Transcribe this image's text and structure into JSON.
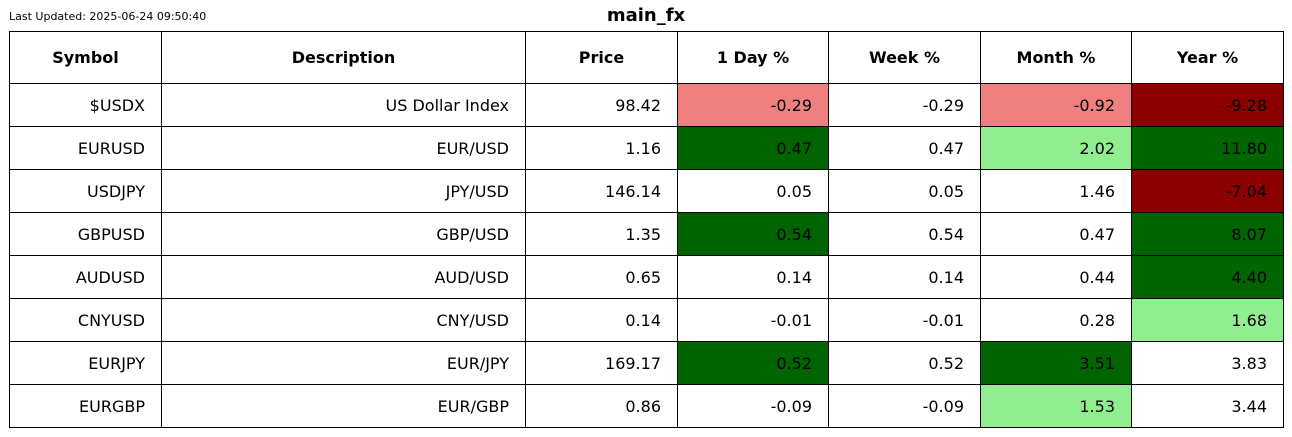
{
  "header": {
    "last_updated": "Last Updated: 2025-06-24 09:50:40",
    "title": "main_fx"
  },
  "colors": {
    "strong_positive": "#006400",
    "mild_positive": "#90ee90",
    "mild_negative": "#f08080",
    "strong_negative": "#8b0000",
    "neutral": "#ffffff"
  },
  "chart_data": {
    "type": "table",
    "title": "main_fx",
    "columns": [
      "Symbol",
      "Description",
      "Price",
      "1 Day %",
      "Week %",
      "Month %",
      "Year %"
    ],
    "rows": [
      {
        "cells": [
          "$USDX",
          "US Dollar Index",
          "98.42",
          "-0.29",
          "-0.29",
          "-0.92",
          "-9.28"
        ],
        "shading": [
          "neutral",
          "neutral",
          "neutral",
          "mild_negative",
          "neutral",
          "mild_negative",
          "strong_negative"
        ]
      },
      {
        "cells": [
          "EURUSD",
          "EUR/USD",
          "1.16",
          "0.47",
          "0.47",
          "2.02",
          "11.80"
        ],
        "shading": [
          "neutral",
          "neutral",
          "neutral",
          "strong_positive",
          "neutral",
          "mild_positive",
          "strong_positive"
        ]
      },
      {
        "cells": [
          "USDJPY",
          "JPY/USD",
          "146.14",
          "0.05",
          "0.05",
          "1.46",
          "-7.04"
        ],
        "shading": [
          "neutral",
          "neutral",
          "neutral",
          "neutral",
          "neutral",
          "neutral",
          "strong_negative"
        ]
      },
      {
        "cells": [
          "GBPUSD",
          "GBP/USD",
          "1.35",
          "0.54",
          "0.54",
          "0.47",
          "8.07"
        ],
        "shading": [
          "neutral",
          "neutral",
          "neutral",
          "strong_positive",
          "neutral",
          "neutral",
          "strong_positive"
        ]
      },
      {
        "cells": [
          "AUDUSD",
          "AUD/USD",
          "0.65",
          "0.14",
          "0.14",
          "0.44",
          "4.40"
        ],
        "shading": [
          "neutral",
          "neutral",
          "neutral",
          "neutral",
          "neutral",
          "neutral",
          "strong_positive"
        ]
      },
      {
        "cells": [
          "CNYUSD",
          "CNY/USD",
          "0.14",
          "-0.01",
          "-0.01",
          "0.28",
          "1.68"
        ],
        "shading": [
          "neutral",
          "neutral",
          "neutral",
          "neutral",
          "neutral",
          "neutral",
          "mild_positive"
        ]
      },
      {
        "cells": [
          "EURJPY",
          "EUR/JPY",
          "169.17",
          "0.52",
          "0.52",
          "3.51",
          "3.83"
        ],
        "shading": [
          "neutral",
          "neutral",
          "neutral",
          "strong_positive",
          "neutral",
          "strong_positive",
          "neutral"
        ]
      },
      {
        "cells": [
          "EURGBP",
          "EUR/GBP",
          "0.86",
          "-0.09",
          "-0.09",
          "1.53",
          "3.44"
        ],
        "shading": [
          "neutral",
          "neutral",
          "neutral",
          "neutral",
          "neutral",
          "mild_positive",
          "neutral"
        ]
      }
    ]
  }
}
